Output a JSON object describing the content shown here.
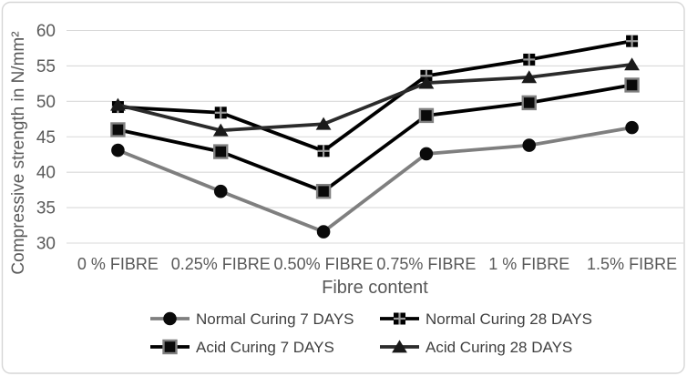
{
  "figure": {
    "background": "#FFFFFF",
    "border_color": "#D6D6D6"
  },
  "chart_data": {
    "type": "line",
    "title": "",
    "xlabel": "Fibre content",
    "ylabel": "Compressive strength in N/mm²",
    "ylim": [
      30,
      60
    ],
    "ytick_step": 5,
    "yticks": [
      30,
      35,
      40,
      45,
      50,
      55,
      60
    ],
    "grid": "horizontal",
    "gridline_color": "#D9D9D9",
    "axis_text_color": "#595959",
    "legend_text_color": "#404040",
    "legend_position": "bottom",
    "categories": [
      "0 % FIBRE",
      "0.25% FIBRE",
      "0.50% FIBRE",
      "0.75% FIBRE",
      "1 % FIBRE",
      "1.5% FIBRE"
    ],
    "series": [
      {
        "name": "Normal Curing 7 DAYS",
        "marker": "circle",
        "line_color": "#7F7F7F",
        "marker_color": "#0A0A0A",
        "values": [
          43.1,
          37.3,
          31.6,
          42.6,
          43.8,
          46.3
        ]
      },
      {
        "name": "Normal Curing 28 DAYS",
        "marker": "foursquare",
        "line_color": "#000000",
        "marker_color": "#000000",
        "values": [
          49.2,
          48.4,
          43.0,
          53.6,
          55.9,
          58.5
        ]
      },
      {
        "name": "Acid Curing 7 DAYS",
        "marker": "square",
        "line_color": "#000000",
        "marker_color": "#0A0A0A",
        "values": [
          46.0,
          42.9,
          37.3,
          48.0,
          49.8,
          52.3
        ]
      },
      {
        "name": "Acid Curing 28 DAYS",
        "marker": "triangle",
        "line_color": "#2B2B2B",
        "marker_color": "#1A1A1A",
        "values": [
          49.5,
          45.9,
          46.8,
          52.6,
          53.4,
          55.2
        ]
      }
    ]
  }
}
